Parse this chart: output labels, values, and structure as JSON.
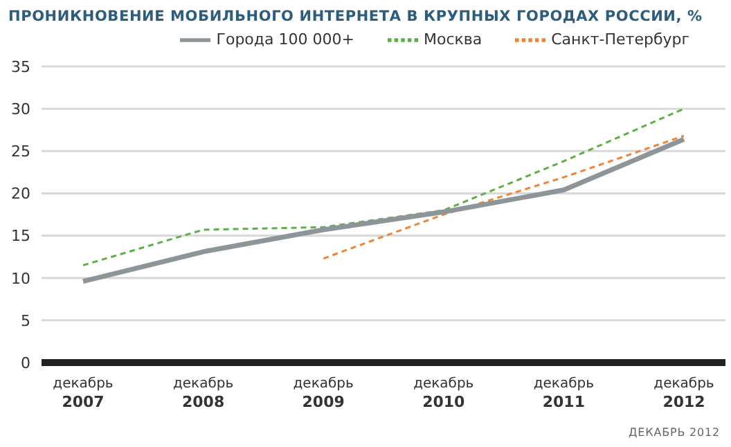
{
  "chart_data": {
    "type": "line",
    "title": "ПРОНИКНОВЕНИЕ МОБИЛЬНОГО ИНТЕРНЕТА В КРУПНЫХ ГОРОДАХ РОССИИ, %",
    "categories": [
      "декабрь 2007",
      "декабрь 2008",
      "декабрь 2009",
      "декабрь 2010",
      "декабрь 2011",
      "декабрь 2012"
    ],
    "series": [
      {
        "name": "Москва",
        "color": "#5cb044",
        "line_style": "dashed",
        "values": [
          11.5,
          15.7,
          16.0,
          18.0,
          23.8,
          30.0
        ]
      },
      {
        "name": "Санкт-Петербург",
        "color": "#ee8436",
        "line_style": "dashed",
        "values": [
          null,
          null,
          12.3,
          17.5,
          21.9,
          26.8
        ]
      },
      {
        "name": "Города 100 000+",
        "color": "#8e9598",
        "line_style": "solid",
        "values": [
          9.6,
          13.1,
          15.7,
          17.8,
          20.4,
          26.4
        ]
      }
    ],
    "ylim": [
      0,
      35
    ],
    "yticks": [
      0,
      5,
      10,
      15,
      20,
      25,
      30,
      35
    ],
    "grid": "y",
    "legend": "top right",
    "marker": "none",
    "annotations": [
      "ДЕКАБРЬ 2012"
    ]
  }
}
